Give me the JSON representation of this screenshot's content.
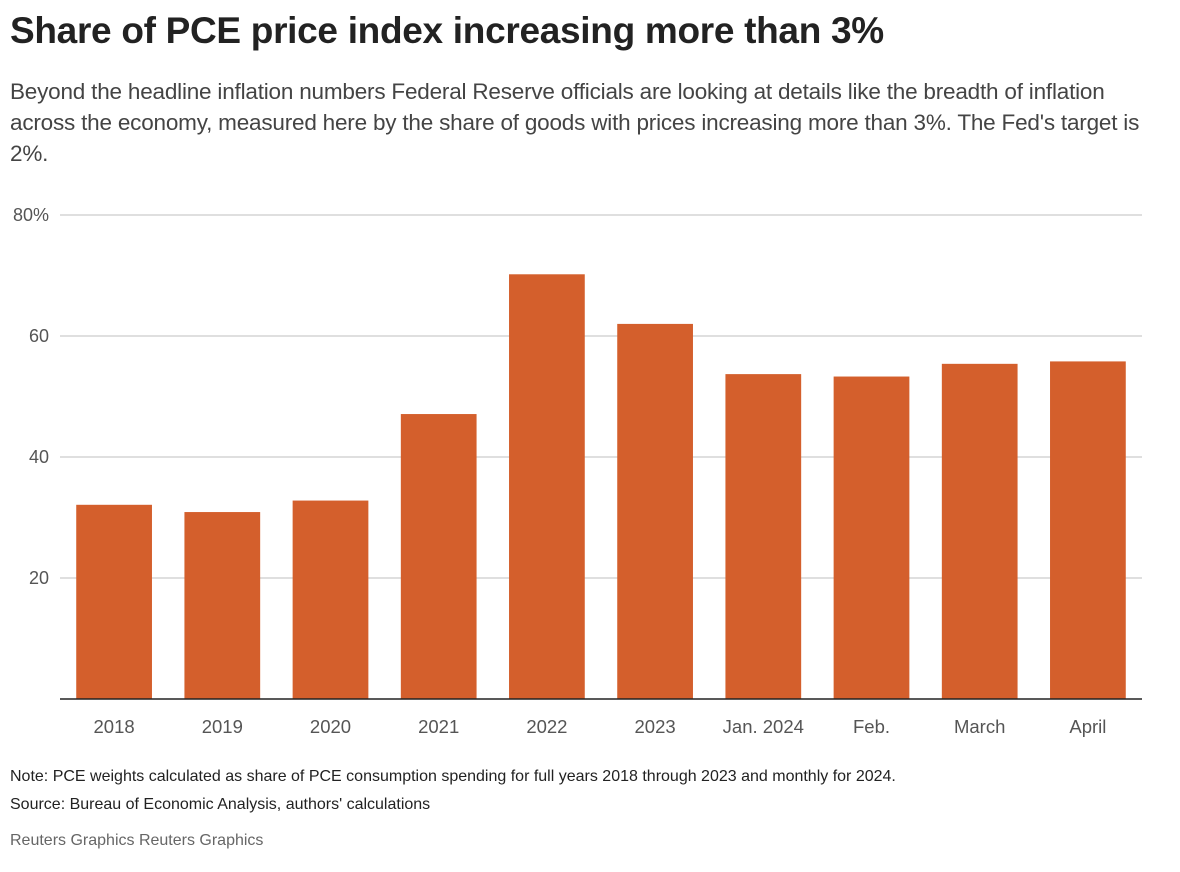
{
  "header": {
    "title": "Share of PCE price index increasing more than 3%",
    "subtitle": "Beyond the headline inflation numbers Federal Reserve officials are looking at details like the breadth of inflation across the economy, measured here by the share of goods with prices increasing more than 3%. The Fed's target is 2%."
  },
  "footer": {
    "note": "Note: PCE weights calculated as share of PCE consumption spending for full years 2018 through 2023 and monthly for 2024.",
    "source": "Source: Bureau of Economic Analysis, authors' calculations",
    "credit": "Reuters Graphics Reuters Graphics"
  },
  "colors": {
    "bar": "#D45F2C",
    "grid": "#CCCCCC",
    "axis": "#222222"
  },
  "chart_data": {
    "type": "bar",
    "title": "Share of PCE price index increasing more than 3%",
    "xlabel": "",
    "ylabel": "",
    "categories": [
      "2018",
      "2019",
      "2020",
      "2021",
      "2022",
      "2023",
      "Jan. 2024",
      "Feb.",
      "March",
      "April"
    ],
    "values": [
      32.1,
      30.9,
      32.8,
      47.1,
      70.2,
      62.0,
      53.7,
      53.3,
      55.4,
      55.8
    ],
    "ylim": [
      0,
      80
    ],
    "yticks": [
      20,
      40,
      60,
      80
    ],
    "ytick_labels": [
      "20",
      "40",
      "60",
      "80%"
    ],
    "grid": true,
    "legend": "none"
  }
}
